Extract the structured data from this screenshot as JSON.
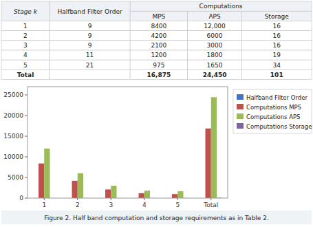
{
  "chart_data": [
    {
      "type": "table",
      "columns": [
        "Stage k",
        "Halfband Filter Order",
        "MPS",
        "APS",
        "Storage"
      ],
      "column_group": {
        "label": "Computations",
        "columns": [
          "MPS",
          "APS",
          "Storage"
        ]
      },
      "rows": [
        [
          "1",
          "9",
          "8400",
          "12,000",
          "16"
        ],
        [
          "2",
          "9",
          "4200",
          "6000",
          "16"
        ],
        [
          "3",
          "9",
          "2100",
          "3000",
          "16"
        ],
        [
          "4",
          "11",
          "1200",
          "1800",
          "19"
        ],
        [
          "5",
          "21",
          "975",
          "1650",
          "34"
        ],
        [
          "Total",
          null,
          "16,875",
          "24,450",
          "101"
        ]
      ]
    },
    {
      "type": "bar",
      "categories": [
        "1",
        "2",
        "3",
        "4",
        "5",
        "Total"
      ],
      "series": [
        {
          "name": "Halfband Filter Order",
          "color": "#4472C4",
          "values": [
            9,
            9,
            9,
            11,
            21,
            0
          ]
        },
        {
          "name": "Computations MPS",
          "color": "#C0504D",
          "values": [
            8400,
            4200,
            2100,
            1200,
            975,
            16875
          ]
        },
        {
          "name": "Computations APS",
          "color": "#9BBB59",
          "values": [
            12000,
            6000,
            3000,
            1800,
            1650,
            24450
          ]
        },
        {
          "name": "Computations Storage",
          "color": "#8064A2",
          "values": [
            16,
            16,
            16,
            19,
            34,
            101
          ]
        }
      ],
      "ylim": [
        0,
        27000
      ],
      "yticks": [
        0,
        5000,
        10000,
        15000,
        20000,
        25000
      ],
      "grid": false,
      "legend": "right",
      "annotations": [
        "Figure 2. Half band computation and storage requirements as in Table 2."
      ]
    }
  ]
}
